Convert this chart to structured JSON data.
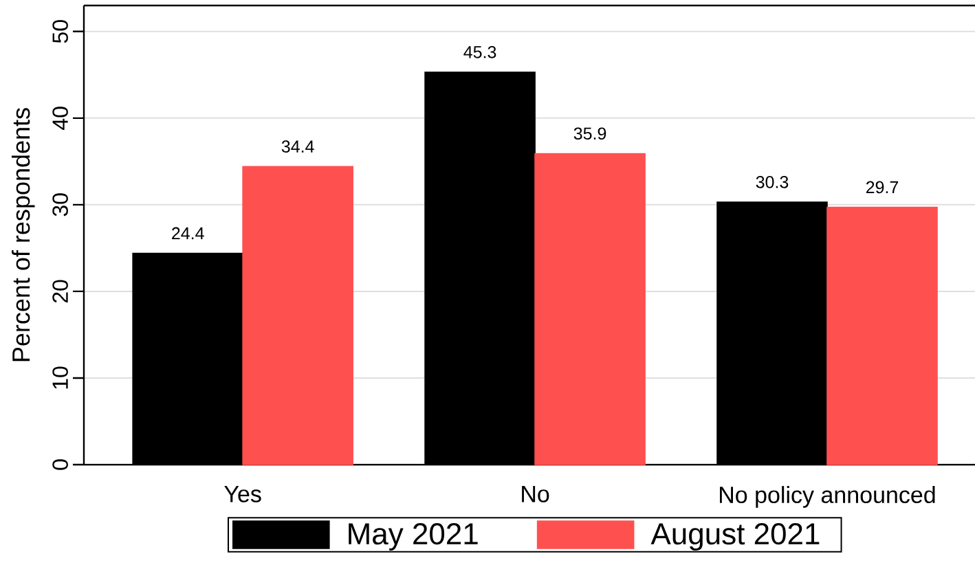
{
  "chart_data": {
    "type": "bar",
    "ylabel": "Percent of respondents",
    "categories": [
      "Yes",
      "No",
      "No policy announced"
    ],
    "series": [
      {
        "name": "May 2021",
        "color": "#000000",
        "values": [
          24.4,
          45.3,
          30.3
        ]
      },
      {
        "name": "August 2021",
        "color": "#ff5050",
        "values": [
          34.4,
          35.9,
          29.7
        ]
      }
    ],
    "ylim": [
      0,
      53
    ],
    "yticks": [
      0,
      10,
      20,
      30,
      40,
      50
    ],
    "grid": "y",
    "legend": "bottom",
    "data_labels": true
  }
}
